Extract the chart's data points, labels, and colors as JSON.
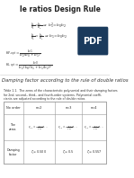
{
  "title": "le ratios Design Rule",
  "bg_color": "#ffffff",
  "text_color": "#333333",
  "section_title": "Damping factor according to the rule of double ratios",
  "table_headers": [
    "No order",
    "n=2",
    "n=3",
    "n=4"
  ],
  "pdf_badge_color": "#1a3a5c",
  "pdf_text": "PDF"
}
